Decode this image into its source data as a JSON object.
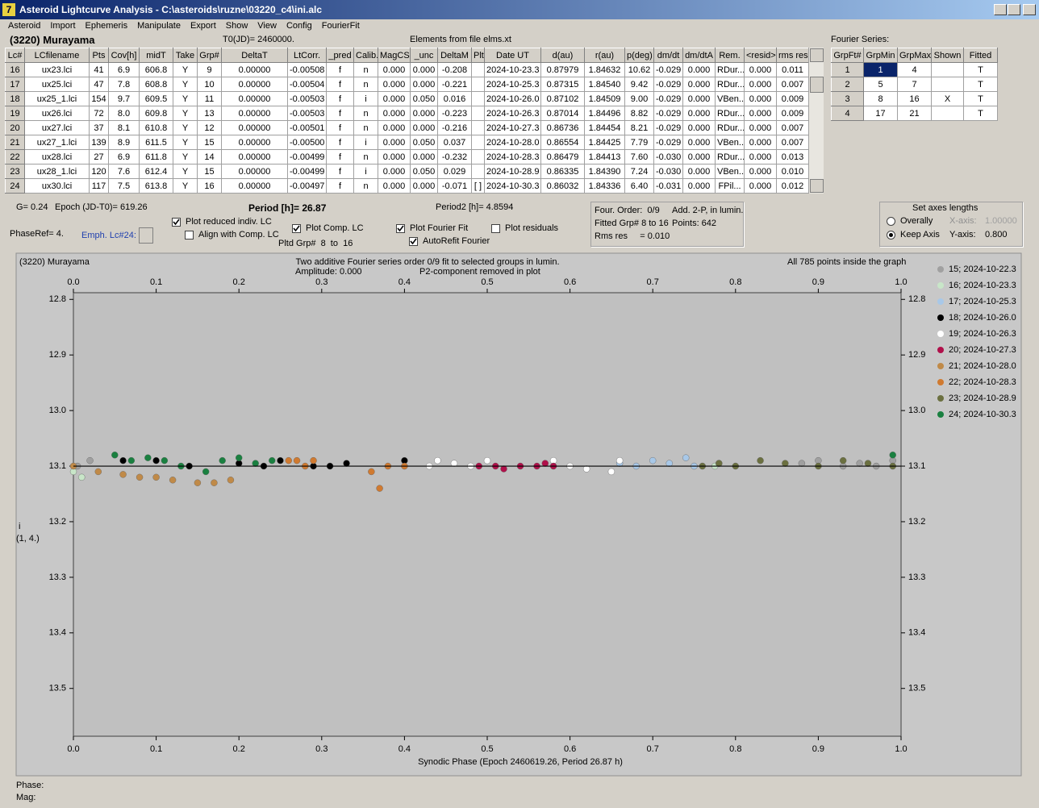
{
  "window": {
    "title": "Asteroid Lightcurve Analysis - C:\\asteroids\\ruzne\\03220_c4\\ini.alc"
  },
  "menu": [
    "Asteroid",
    "Import",
    "Ephemeris",
    "Manipulate",
    "Export",
    "Show",
    "View",
    "Config",
    "FourierFit"
  ],
  "header": {
    "object": "(3220) Murayama",
    "t0": "T0(JD)= 2460000.",
    "elements": "Elements from file elms.xt",
    "fourier_label": "Fourier Series:"
  },
  "table": {
    "columns": [
      "Lc#",
      "LCfilename",
      "Pts",
      "Cov[h]",
      "midT",
      "Take",
      "Grp#",
      "DeltaT",
      "LtCorr.",
      "_pred",
      "Calib.",
      "MagCS",
      "_unc",
      "DeltaM",
      "Plt",
      "Date UT",
      "d(au)",
      "r(au)",
      "p(deg)",
      "dm/dt",
      "dm/dtA",
      "Rem.",
      "<resid>",
      "rms res"
    ],
    "rows": [
      [
        "16",
        "ux23.lci",
        "41",
        "6.9",
        "606.8",
        "Y",
        "9",
        "0.00000",
        "-0.00508",
        "f",
        "n",
        "0.000",
        "0.000",
        "-0.208",
        null,
        "2024-10-23.3",
        "0.87979",
        "1.84632",
        "10.62",
        "-0.029",
        "0.000",
        "RDur...",
        "0.000",
        "0.011"
      ],
      [
        "17",
        "ux25.lci",
        "47",
        "7.8",
        "608.8",
        "Y",
        "10",
        "0.00000",
        "-0.00504",
        "f",
        "n",
        "0.000",
        "0.000",
        "-0.221",
        null,
        "2024-10-25.3",
        "0.87315",
        "1.84540",
        "9.42",
        "-0.029",
        "0.000",
        "RDur...",
        "0.000",
        "0.007"
      ],
      [
        "18",
        "ux25_1.lci",
        "154",
        "9.7",
        "609.5",
        "Y",
        "11",
        "0.00000",
        "-0.00503",
        "f",
        "i",
        "0.000",
        "0.050",
        "0.016",
        null,
        "2024-10-26.0",
        "0.87102",
        "1.84509",
        "9.00",
        "-0.029",
        "0.000",
        "VBen...",
        "0.000",
        "0.009"
      ],
      [
        "19",
        "ux26.lci",
        "72",
        "8.0",
        "609.8",
        "Y",
        "13",
        "0.00000",
        "-0.00503",
        "f",
        "n",
        "0.000",
        "0.000",
        "-0.223",
        null,
        "2024-10-26.3",
        "0.87014",
        "1.84496",
        "8.82",
        "-0.029",
        "0.000",
        "RDur...",
        "0.000",
        "0.009"
      ],
      [
        "20",
        "ux27.lci",
        "37",
        "8.1",
        "610.8",
        "Y",
        "12",
        "0.00000",
        "-0.00501",
        "f",
        "n",
        "0.000",
        "0.000",
        "-0.216",
        null,
        "2024-10-27.3",
        "0.86736",
        "1.84454",
        "8.21",
        "-0.029",
        "0.000",
        "RDur...",
        "0.000",
        "0.007"
      ],
      [
        "21",
        "ux27_1.lci",
        "139",
        "8.9",
        "611.5",
        "Y",
        "15",
        "0.00000",
        "-0.00500",
        "f",
        "i",
        "0.000",
        "0.050",
        "0.037",
        null,
        "2024-10-28.0",
        "0.86554",
        "1.84425",
        "7.79",
        "-0.029",
        "0.000",
        "VBen...",
        "0.000",
        "0.007"
      ],
      [
        "22",
        "ux28.lci",
        "27",
        "6.9",
        "611.8",
        "Y",
        "14",
        "0.00000",
        "-0.00499",
        "f",
        "n",
        "0.000",
        "0.000",
        "-0.232",
        null,
        "2024-10-28.3",
        "0.86479",
        "1.84413",
        "7.60",
        "-0.030",
        "0.000",
        "RDur...",
        "0.000",
        "0.013"
      ],
      [
        "23",
        "ux28_1.lci",
        "120",
        "7.6",
        "612.4",
        "Y",
        "15",
        "0.00000",
        "-0.00499",
        "f",
        "i",
        "0.000",
        "0.050",
        "0.029",
        null,
        "2024-10-28.9",
        "0.86335",
        "1.84390",
        "7.24",
        "-0.030",
        "0.000",
        "VBen...",
        "0.000",
        "0.010"
      ],
      [
        "24",
        "ux30.lci",
        "117",
        "7.5",
        "613.8",
        "Y",
        "16",
        "0.00000",
        "-0.00497",
        "f",
        "n",
        "0.000",
        "0.000",
        "-0.071",
        "[ ]",
        "2024-10-30.3",
        "0.86032",
        "1.84336",
        "6.40",
        "-0.031",
        "0.000",
        "FPil...",
        "0.000",
        "0.012"
      ]
    ]
  },
  "fourier": {
    "columns": [
      "GrpFt#",
      "GrpMin",
      "GrpMax",
      "Shown",
      "Fitted"
    ],
    "rows": [
      [
        "1",
        "1",
        "4",
        null,
        "T"
      ],
      [
        "2",
        "5",
        "7",
        null,
        "T"
      ],
      [
        "3",
        "8",
        "16",
        "X",
        "T"
      ],
      [
        "4",
        "17",
        "21",
        null,
        "T"
      ]
    ]
  },
  "controls": {
    "g": "G= 0.24",
    "epoch": "Epoch (JD-T0)= 619.26",
    "period": "Period [h]= 26.87",
    "period2": "Period2 [h]= 4.8594",
    "phaseref": "PhaseRef= 4.",
    "emph": "Emph. Lc#24:",
    "checkboxes": [
      {
        "label": "Plot reduced indiv. LC",
        "checked": true
      },
      {
        "label": "Align with Comp. LC",
        "checked": false
      },
      {
        "label": "Plot Comp. LC",
        "checked": true
      },
      {
        "label": "Plot Fourier Fit",
        "checked": true
      },
      {
        "label": "AutoRefit Fourier",
        "checked": true
      },
      {
        "label": "Plot residuals",
        "checked": false
      }
    ],
    "pltd": "Pltd Grp#  8  to  16"
  },
  "info": {
    "order": "Four. Order:  0/9",
    "add": "Add. 2-P, in lumin.",
    "fitted": "Fitted Grp# 8 to 16",
    "points": "Points: 642",
    "rms": "Rms res     = 0.010"
  },
  "axes_box": {
    "title": "Set axes lengths",
    "radios": [
      {
        "label": "Overally",
        "checked": false
      },
      {
        "label": "Keep Axis",
        "checked": true
      }
    ],
    "x_label": "X-axis:",
    "x_value": "1.00000",
    "y_label": "Y-axis:",
    "y_value": "0.800"
  },
  "chart_data": {
    "type": "scatter",
    "object_label": "(3220) Murayama",
    "title": "Two additive Fourier series order 0/9 fit to selected groups in lumin.",
    "annotations": [
      "Amplitude: 0.000",
      "P2-component removed in plot",
      "All 785 points inside the graph"
    ],
    "xlabel": "Synodic Phase (Epoch 2460619.26, Period 26.87 h)",
    "ylabel": "i",
    "ylabel2": "(1, 4.)",
    "xlim": [
      0,
      1
    ],
    "xticks": [
      {
        "value": 0,
        "label": "0.0"
      },
      0.1,
      0.2,
      0.3,
      0.4,
      0.5,
      0.6,
      0.7,
      0.8,
      0.9,
      {
        "value": 1,
        "label": "1.0"
      }
    ],
    "ylim": [
      13.586,
      12.788
    ],
    "yticks": [
      12.8,
      12.9,
      {
        "value": 13,
        "label": "13.0"
      },
      13.1,
      13.2,
      13.3,
      13.4,
      13.5
    ],
    "fit_line": {
      "x": [
        0,
        1
      ],
      "values": [
        13.1,
        13.1
      ]
    },
    "series": [
      {
        "name": "15; 2024-10-22.3",
        "color": "#a0a0a0",
        "x": [
          0.005,
          0.02,
          0.88,
          0.9,
          0.93,
          0.95,
          0.97,
          0.99
        ],
        "values": [
          13.1,
          13.09,
          13.095,
          13.09,
          13.1,
          13.095,
          13.1,
          13.09
        ]
      },
      {
        "name": "16; 2024-10-23.3",
        "color": "#c8e6c8",
        "x": [
          0.0,
          0.01,
          0.775,
          0.78
        ],
        "values": [
          13.11,
          13.12,
          13.1,
          13.095
        ]
      },
      {
        "name": "17; 2024-10-25.3",
        "color": "#a8c8e8",
        "x": [
          0.66,
          0.68,
          0.7,
          0.72,
          0.74,
          0.75
        ],
        "values": [
          13.095,
          13.1,
          13.09,
          13.095,
          13.085,
          13.1
        ]
      },
      {
        "name": "18; 2024-10-26.0",
        "color": "#000000",
        "x": [
          0.06,
          0.1,
          0.14,
          0.2,
          0.23,
          0.25,
          0.29,
          0.31,
          0.33,
          0.4
        ],
        "values": [
          13.09,
          13.09,
          13.1,
          13.095,
          13.1,
          13.09,
          13.1,
          13.1,
          13.095,
          13.09
        ]
      },
      {
        "name": "19; 2024-10-26.3",
        "color": "#ffffff",
        "x": [
          0.43,
          0.44,
          0.46,
          0.48,
          0.5,
          0.58,
          0.6,
          0.62,
          0.65,
          0.66
        ],
        "values": [
          13.1,
          13.09,
          13.095,
          13.1,
          13.09,
          13.09,
          13.1,
          13.105,
          13.11,
          13.09
        ]
      },
      {
        "name": "20; 2024-10-27.3",
        "color": "#b0104a",
        "x": [
          0.49,
          0.51,
          0.52,
          0.54,
          0.56,
          0.57,
          0.58
        ],
        "values": [
          13.1,
          13.1,
          13.105,
          13.1,
          13.1,
          13.095,
          13.1
        ]
      },
      {
        "name": "21; 2024-10-28.0",
        "color": "#c08a48",
        "x": [
          0.0,
          0.03,
          0.06,
          0.08,
          0.1,
          0.12,
          0.15,
          0.17,
          0.19
        ],
        "values": [
          13.1,
          13.11,
          13.115,
          13.12,
          13.12,
          13.125,
          13.13,
          13.13,
          13.125
        ]
      },
      {
        "name": "22; 2024-10-28.3",
        "color": "#d07a30",
        "x": [
          0.26,
          0.27,
          0.28,
          0.29,
          0.36,
          0.37,
          0.38,
          0.4
        ],
        "values": [
          13.09,
          13.09,
          13.1,
          13.09,
          13.11,
          13.14,
          13.1,
          13.1
        ]
      },
      {
        "name": "23; 2024-10-28.9",
        "color": "#6b7040",
        "x": [
          0.76,
          0.78,
          0.8,
          0.83,
          0.86,
          0.9,
          0.93,
          0.96,
          0.99
        ],
        "values": [
          13.1,
          13.095,
          13.1,
          13.09,
          13.095,
          13.1,
          13.09,
          13.095,
          13.1
        ]
      },
      {
        "name": "24; 2024-10-30.3",
        "color": "#1a8040",
        "x": [
          0.05,
          0.07,
          0.09,
          0.11,
          0.13,
          0.16,
          0.18,
          0.2,
          0.22,
          0.24,
          0.99
        ],
        "values": [
          13.08,
          13.09,
          13.085,
          13.09,
          13.1,
          13.11,
          13.09,
          13.085,
          13.095,
          13.09,
          13.08
        ]
      }
    ]
  },
  "status": {
    "phase": "Phase:",
    "mag": "Mag:"
  }
}
